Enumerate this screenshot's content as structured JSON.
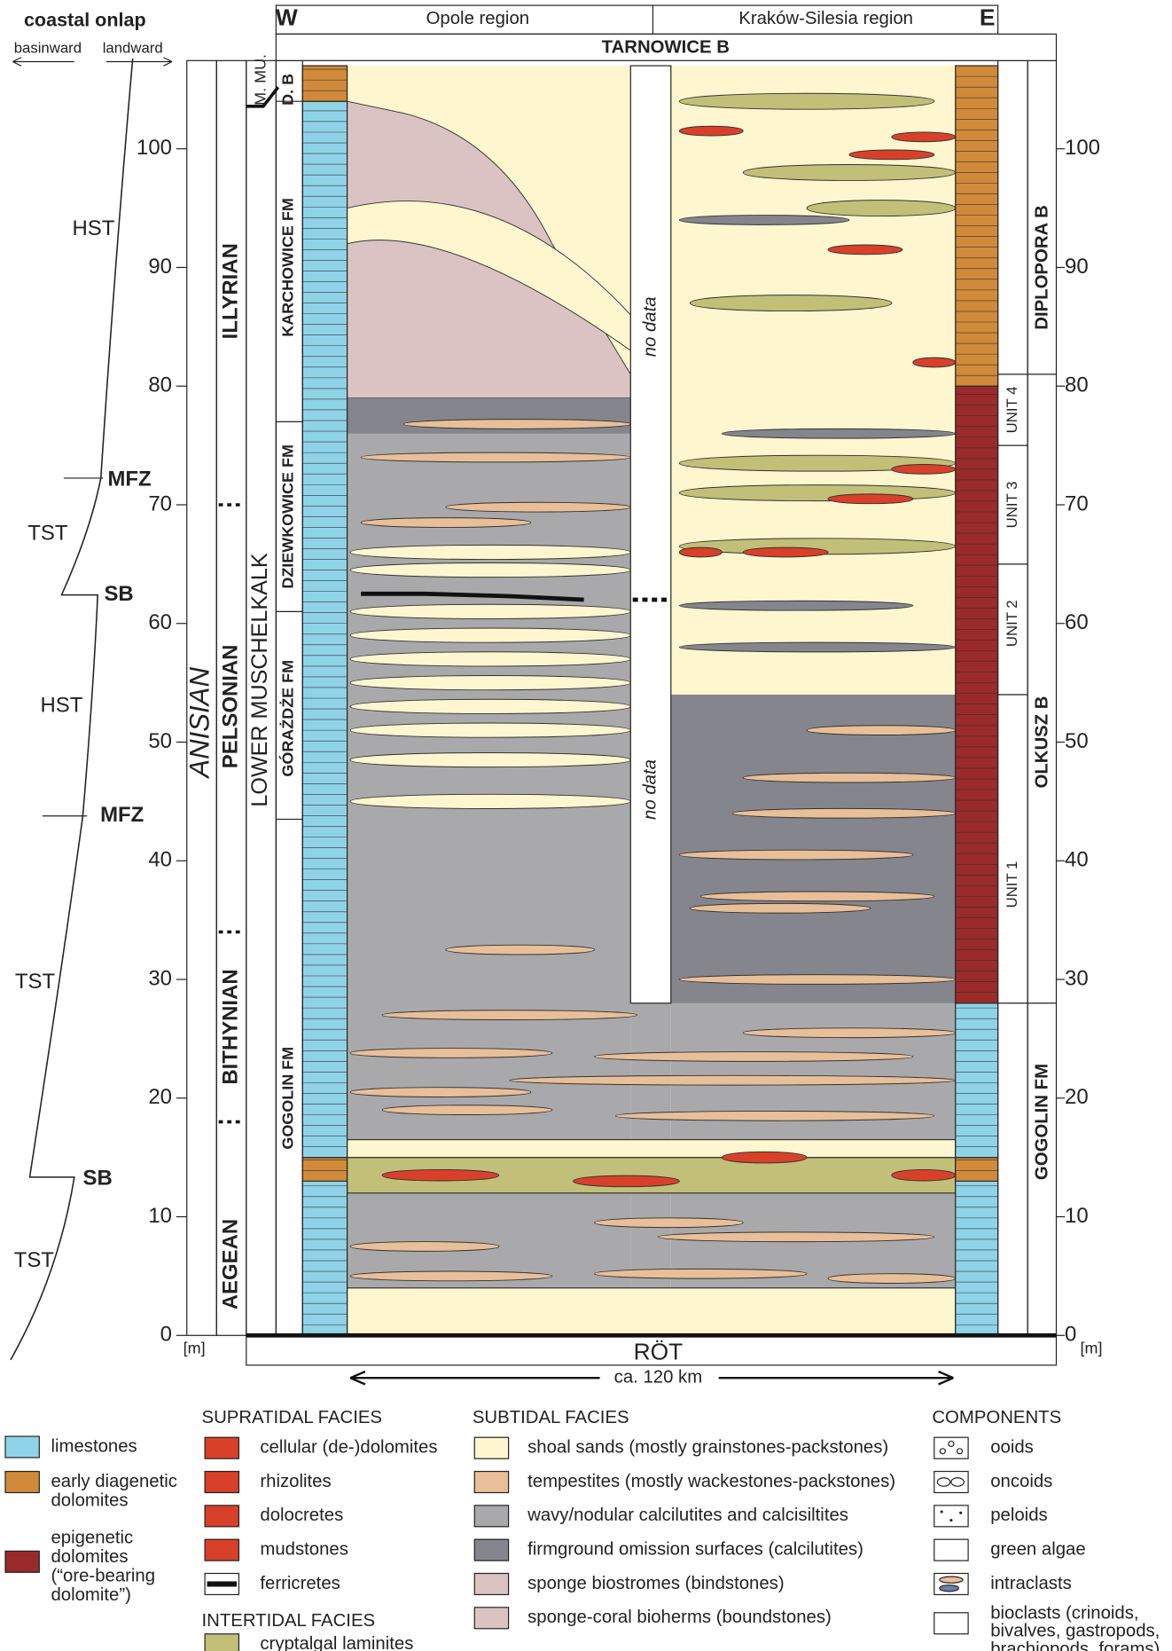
{
  "onlap": {
    "title": "coastal onlap",
    "basinward": "basinward",
    "landward": "landward",
    "labels": [
      "HST",
      "MFZ",
      "TST",
      "SB",
      "HST",
      "MFZ",
      "TST",
      "SB",
      "TST"
    ]
  },
  "depth_axis": {
    "ticks": [
      0,
      10,
      20,
      30,
      40,
      50,
      60,
      70,
      80,
      90,
      100
    ],
    "unit": "[m]"
  },
  "header": {
    "west": "W",
    "west_region": "Opole region",
    "east_region": "Kraków-Silesia region",
    "east": "E",
    "top_bed": "TARNOWICE B",
    "base": "RÖT",
    "distance": "ca. 120 km"
  },
  "left_columns": {
    "system": "ANISIAN",
    "stages": [
      "AEGEAN",
      "BITHYNIAN",
      "PELSONIAN",
      "ILLYRIAN"
    ],
    "group": "LOWER MUSCHELKALK",
    "group_upper": "M. MU.",
    "formations": [
      "GOGOLIN FM",
      "GÓRAŻDŻE FM",
      "DZIEWKOWICE FM",
      "KARCHOWICE FM",
      "D. B"
    ]
  },
  "right_columns": {
    "beds": [
      "GOGOLIN FM",
      "OLKUSZ B",
      "DIPLOPORA B"
    ],
    "units": [
      "UNIT 1",
      "UNIT 2",
      "UNIT 3",
      "UNIT 4"
    ]
  },
  "no_data": [
    "no data",
    "no data"
  ],
  "legend": {
    "lithology": [
      [
        "limestones"
      ],
      [
        "early diagenetic",
        "dolomites"
      ],
      [
        "epigenetic",
        "dolomites",
        "(“ore-bearing",
        "dolomite”)"
      ]
    ],
    "supratidal": {
      "title": "SUPRATIDAL FACIES",
      "items": [
        "cellular (de-)dolomites",
        "rhizolites",
        "dolocretes",
        "mudstones",
        "ferricretes"
      ]
    },
    "intertidal": {
      "title": "INTERTIDAL FACIES",
      "items": [
        "cryptalgal laminites"
      ]
    },
    "subtidal": {
      "title": "SUBTIDAL FACIES",
      "items": [
        "shoal sands (mostly grainstones-packstones)",
        "tempestites (mostly wackestones-packstones)",
        "wavy/nodular calcilutites and calcisiltites",
        "firmground omission surfaces (calcilutites)",
        "sponge biostromes (bindstones)",
        "sponge-coral bioherms (boundstones)"
      ]
    },
    "components": {
      "title": "COMPONENTS",
      "items": [
        [
          "ooids"
        ],
        [
          "oncoids"
        ],
        [
          "peloids"
        ],
        [
          "green algae"
        ],
        [
          "intraclasts"
        ],
        [
          "bioclasts (crinoids,",
          "bivalves, gastropods,",
          "brachiopods, forams)"
        ]
      ]
    }
  }
}
